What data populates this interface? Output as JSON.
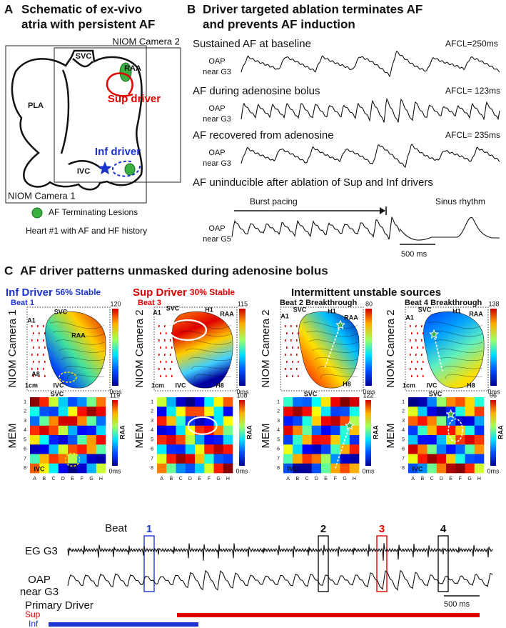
{
  "panel_a": {
    "letter": "A",
    "title": [
      "Schematic of ex-vivo",
      "atria with persistent AF"
    ],
    "camera2": "NIOM Camera 2",
    "camera1": "NIOM Camera 1",
    "svc": "SVC",
    "raa": "RAA",
    "pla": "PLA",
    "sup_driver": "Sup driver",
    "inf_driver": "Inf driver",
    "ivc": "IVC",
    "legend": "AF Terminating Lesions",
    "note": "Heart #1 with AF and HF history"
  },
  "panel_b": {
    "letter": "B",
    "title": [
      "Driver targeted ablation terminates AF",
      "and prevents AF induction"
    ],
    "rows": [
      {
        "title": "Sustained AF at baseline",
        "afcl": "AFCL=250ms",
        "oap": [
          "OAP",
          "near G3"
        ]
      },
      {
        "title": "AF during adenosine bolus",
        "afcl": "AFCL= 123ms",
        "oap": [
          "OAP",
          "near G3"
        ]
      },
      {
        "title": "AF recovered from adenosine",
        "afcl": "AFCL= 235ms",
        "oap": [
          "OAP",
          "near G3"
        ]
      }
    ],
    "last_row": {
      "title": "AF uninducible after ablation of Sup and Inf drivers",
      "burst": "Burst pacing",
      "sinus": "Sinus rhythm",
      "oap": [
        "OAP",
        "near G5"
      ],
      "scale": "500 ms"
    }
  },
  "panel_c": {
    "letter": "C",
    "title": "AF driver patterns unmasked during adenosine bolus",
    "unstable": "Intermittent unstable sources",
    "mem_label": "MEM",
    "mem_rows": [
      "1",
      "2",
      "3",
      "4",
      "5",
      "6",
      "7",
      "8"
    ],
    "mem_columns": [
      "A",
      "B",
      "C",
      "D",
      "E",
      "F",
      "G",
      "H"
    ],
    "maps": [
      {
        "title": "Inf Driver",
        "stable": "56% Stable",
        "beat": "Beat 1",
        "camera": "NIOM Camera 1",
        "scale_max": 120,
        "scale_min": "0ms",
        "mem_max": 119,
        "mem_min": "0ms",
        "landmarks": [
          "A1",
          "SVC",
          "RAA",
          "A8",
          "IVC",
          "1cm"
        ],
        "mem_landmarks": [
          "SVC",
          "RAA",
          "IVC"
        ]
      },
      {
        "title": "Sup Driver",
        "stable": "30% Stable",
        "beat": "Beat 3",
        "camera": "NIOM Camera 2",
        "scale_max": 115,
        "scale_min": "0ms",
        "mem_max": 108,
        "mem_min": "0ms",
        "landmarks": [
          "A1",
          "SVC",
          "H1",
          "RAA",
          "1cm",
          "IVC",
          "H8"
        ],
        "mem_landmarks": [
          "RAA"
        ]
      },
      {
        "beat": "Beat 2 Breakthrough",
        "camera": "NIOM Camera 2",
        "scale_max": 80,
        "scale_min": "0ms",
        "mem_max": 122,
        "mem_min": "0ms",
        "landmarks": [
          "A1",
          "SVC",
          "H1",
          "RAA",
          "H8"
        ],
        "mem_landmarks": [
          "SVC",
          "RAA",
          "IVC"
        ]
      },
      {
        "beat": "Beat 4 Breakthrough",
        "camera": "NIOM Camera 2",
        "scale_max": 138,
        "scale_min": "0ms",
        "mem_max": 96,
        "mem_min": "0ms",
        "landmarks": [
          "A1",
          "SVC",
          "H1",
          "RAA",
          "1cm",
          "IVC",
          "H8"
        ],
        "mem_landmarks": [
          "SVC",
          "RAA",
          "IVC"
        ]
      }
    ],
    "recording": {
      "beat_label": "Beat",
      "beats": [
        "1",
        "2",
        "3",
        "4"
      ],
      "eg": "EG G3",
      "oap": [
        "OAP",
        "near G3"
      ],
      "scale": "500 ms",
      "primary_driver": "Primary Driver",
      "sup": "Sup",
      "inf": "Inf"
    }
  }
}
